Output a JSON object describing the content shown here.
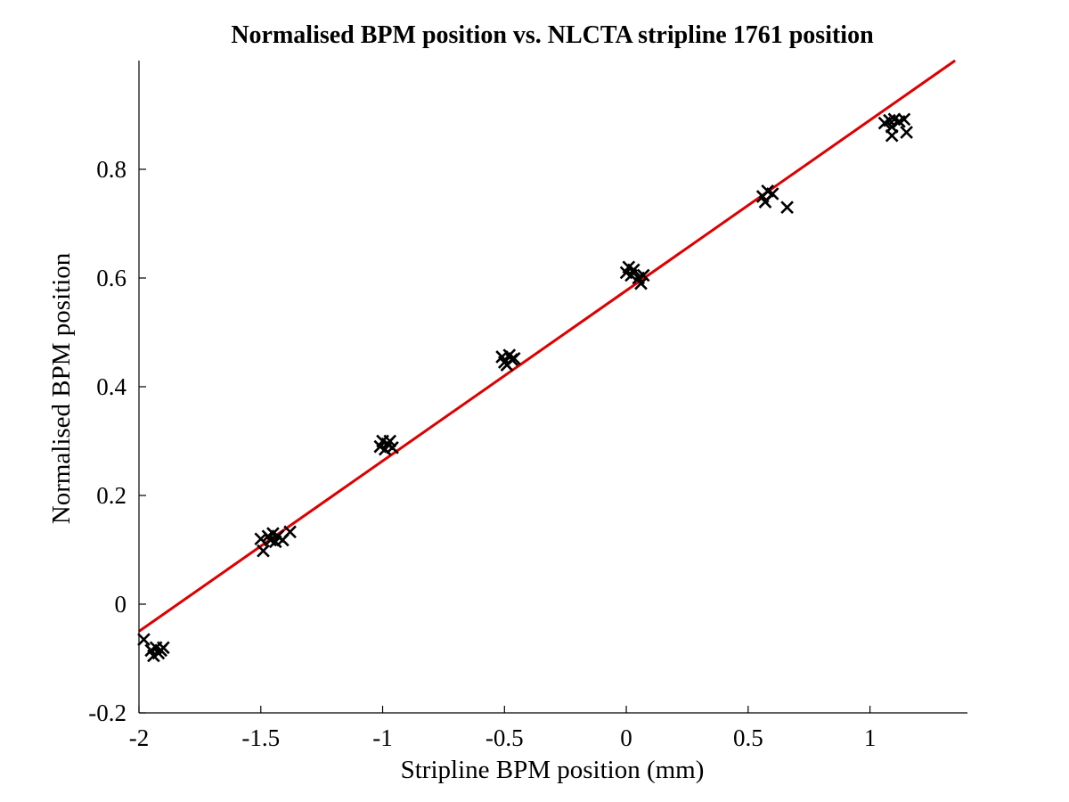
{
  "chart_data": {
    "type": "scatter",
    "title": "Normalised BPM position vs. NLCTA stripline 1761 position",
    "xlabel": "Stripline BPM position (mm)",
    "ylabel": "Normalised BPM position",
    "xlim": [
      -2,
      1.4
    ],
    "ylim": [
      -0.2,
      1.0
    ],
    "xticks": [
      -2,
      -1.5,
      -1,
      -0.5,
      0,
      0.5,
      1
    ],
    "xtick_labels": [
      "-2",
      "-1.5",
      "-1",
      "-0.5",
      "0",
      "0.5",
      "1"
    ],
    "yticks": [
      -0.2,
      0,
      0.2,
      0.4,
      0.6,
      0.8
    ],
    "ytick_labels": [
      "-0.2",
      "0",
      "0.2",
      "0.4",
      "0.6",
      "0.8"
    ],
    "grid": false,
    "marker_color": "#000000",
    "fit_color": "#dd0000",
    "points": [
      [
        -1.98,
        -0.065
      ],
      [
        -1.95,
        -0.085
      ],
      [
        -1.94,
        -0.095
      ],
      [
        -1.93,
        -0.08
      ],
      [
        -1.92,
        -0.09
      ],
      [
        -1.91,
        -0.085
      ],
      [
        -1.9,
        -0.08
      ],
      [
        -1.5,
        0.12
      ],
      [
        -1.49,
        0.098
      ],
      [
        -1.47,
        0.125
      ],
      [
        -1.46,
        0.118
      ],
      [
        -1.45,
        0.13
      ],
      [
        -1.44,
        0.115
      ],
      [
        -1.43,
        0.125
      ],
      [
        -1.41,
        0.118
      ],
      [
        -1.38,
        0.133
      ],
      [
        -1.01,
        0.29
      ],
      [
        -1.0,
        0.3
      ],
      [
        -0.99,
        0.285
      ],
      [
        -0.98,
        0.295
      ],
      [
        -0.97,
        0.3
      ],
      [
        -0.96,
        0.288
      ],
      [
        -0.51,
        0.455
      ],
      [
        -0.5,
        0.445
      ],
      [
        -0.49,
        0.44
      ],
      [
        -0.48,
        0.458
      ],
      [
        -0.47,
        0.45
      ],
      [
        -0.46,
        0.452
      ],
      [
        0.0,
        0.61
      ],
      [
        0.01,
        0.62
      ],
      [
        0.02,
        0.605
      ],
      [
        0.03,
        0.615
      ],
      [
        0.05,
        0.6
      ],
      [
        0.06,
        0.59
      ],
      [
        0.07,
        0.605
      ],
      [
        0.56,
        0.75
      ],
      [
        0.57,
        0.74
      ],
      [
        0.58,
        0.76
      ],
      [
        0.6,
        0.755
      ],
      [
        0.66,
        0.73
      ],
      [
        1.06,
        0.885
      ],
      [
        1.08,
        0.89
      ],
      [
        1.09,
        0.878
      ],
      [
        1.1,
        0.892
      ],
      [
        1.09,
        0.862
      ],
      [
        1.12,
        0.888
      ],
      [
        1.14,
        0.892
      ],
      [
        1.15,
        0.868
      ]
    ],
    "fit_line": {
      "slope": 0.3135,
      "intercept": 0.577
    }
  }
}
